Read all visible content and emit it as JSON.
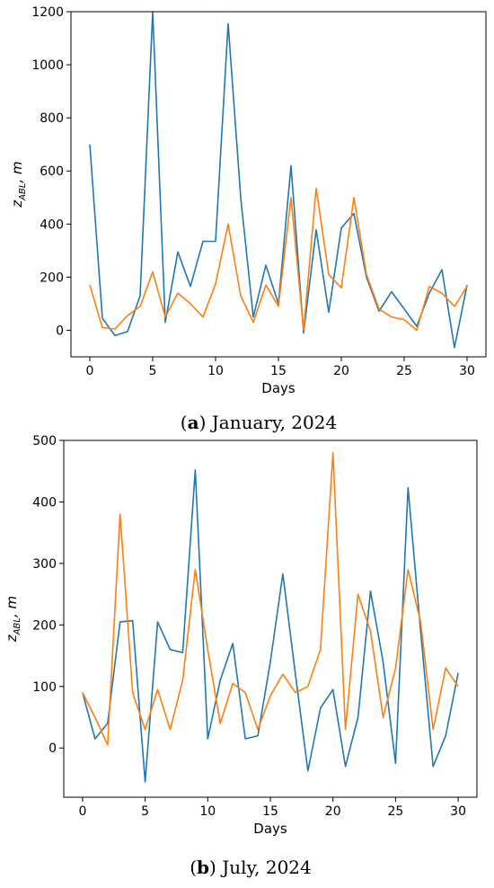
{
  "colors": {
    "series1": "#1f77b4",
    "series2": "#ff7f0e"
  },
  "chart_data": [
    {
      "type": "line",
      "caption": {
        "letter": "a",
        "text": "January, 2024"
      },
      "xlabel": "Days",
      "ylabel": {
        "symbol": "z",
        "subscript": "ABL",
        "unit": ", m"
      },
      "xlim": [
        -1.5,
        31.5
      ],
      "ylim": [
        -100,
        1200
      ],
      "xticks": [
        0,
        5,
        10,
        15,
        20,
        25,
        30
      ],
      "yticks": [
        0,
        200,
        400,
        600,
        800,
        1000,
        1200
      ],
      "grid": false,
      "legend": "none",
      "x": [
        0,
        1,
        2,
        3,
        4,
        5,
        6,
        7,
        8,
        9,
        10,
        11,
        12,
        13,
        14,
        15,
        16,
        17,
        18,
        19,
        20,
        21,
        22,
        23,
        24,
        25,
        26,
        27,
        28,
        29,
        30
      ],
      "series": [
        {
          "values": [
            700,
            45,
            -20,
            -5,
            130,
            1200,
            30,
            295,
            165,
            335,
            335,
            1155,
            500,
            50,
            245,
            100,
            620,
            -10,
            378,
            68,
            385,
            440,
            200,
            72,
            145,
            80,
            15,
            140,
            228,
            -65,
            170
          ]
        },
        {
          "values": [
            170,
            10,
            5,
            55,
            90,
            220,
            50,
            140,
            100,
            50,
            175,
            400,
            130,
            30,
            170,
            90,
            500,
            0,
            535,
            210,
            160,
            500,
            210,
            80,
            50,
            40,
            0,
            165,
            140,
            90,
            165
          ]
        }
      ]
    },
    {
      "type": "line",
      "caption": {
        "letter": "b",
        "text": "July, 2024"
      },
      "xlabel": "Days",
      "ylabel": {
        "symbol": "z",
        "subscript": "ABL",
        "unit": ", m"
      },
      "xlim": [
        -1.5,
        31.5
      ],
      "ylim": [
        -80,
        500
      ],
      "xticks": [
        0,
        5,
        10,
        15,
        20,
        25,
        30
      ],
      "yticks": [
        0,
        100,
        200,
        300,
        400,
        500
      ],
      "grid": false,
      "legend": "none",
      "x": [
        0,
        1,
        2,
        3,
        4,
        5,
        6,
        7,
        8,
        9,
        10,
        11,
        12,
        13,
        14,
        15,
        16,
        17,
        18,
        19,
        20,
        21,
        22,
        23,
        24,
        25,
        26,
        27,
        28,
        29,
        30
      ],
      "series": [
        {
          "values": [
            90,
            15,
            40,
            205,
            207,
            -55,
            205,
            160,
            155,
            452,
            15,
            110,
            170,
            15,
            20,
            140,
            283,
            120,
            -37,
            65,
            95,
            -30,
            50,
            255,
            140,
            -25,
            423,
            190,
            -30,
            20,
            122
          ]
        },
        {
          "values": [
            90,
            50,
            5,
            380,
            90,
            30,
            95,
            30,
            110,
            290,
            160,
            40,
            105,
            90,
            30,
            85,
            120,
            90,
            100,
            160,
            480,
            30,
            250,
            190,
            50,
            130,
            290,
            205,
            30,
            130,
            100
          ]
        }
      ]
    }
  ]
}
